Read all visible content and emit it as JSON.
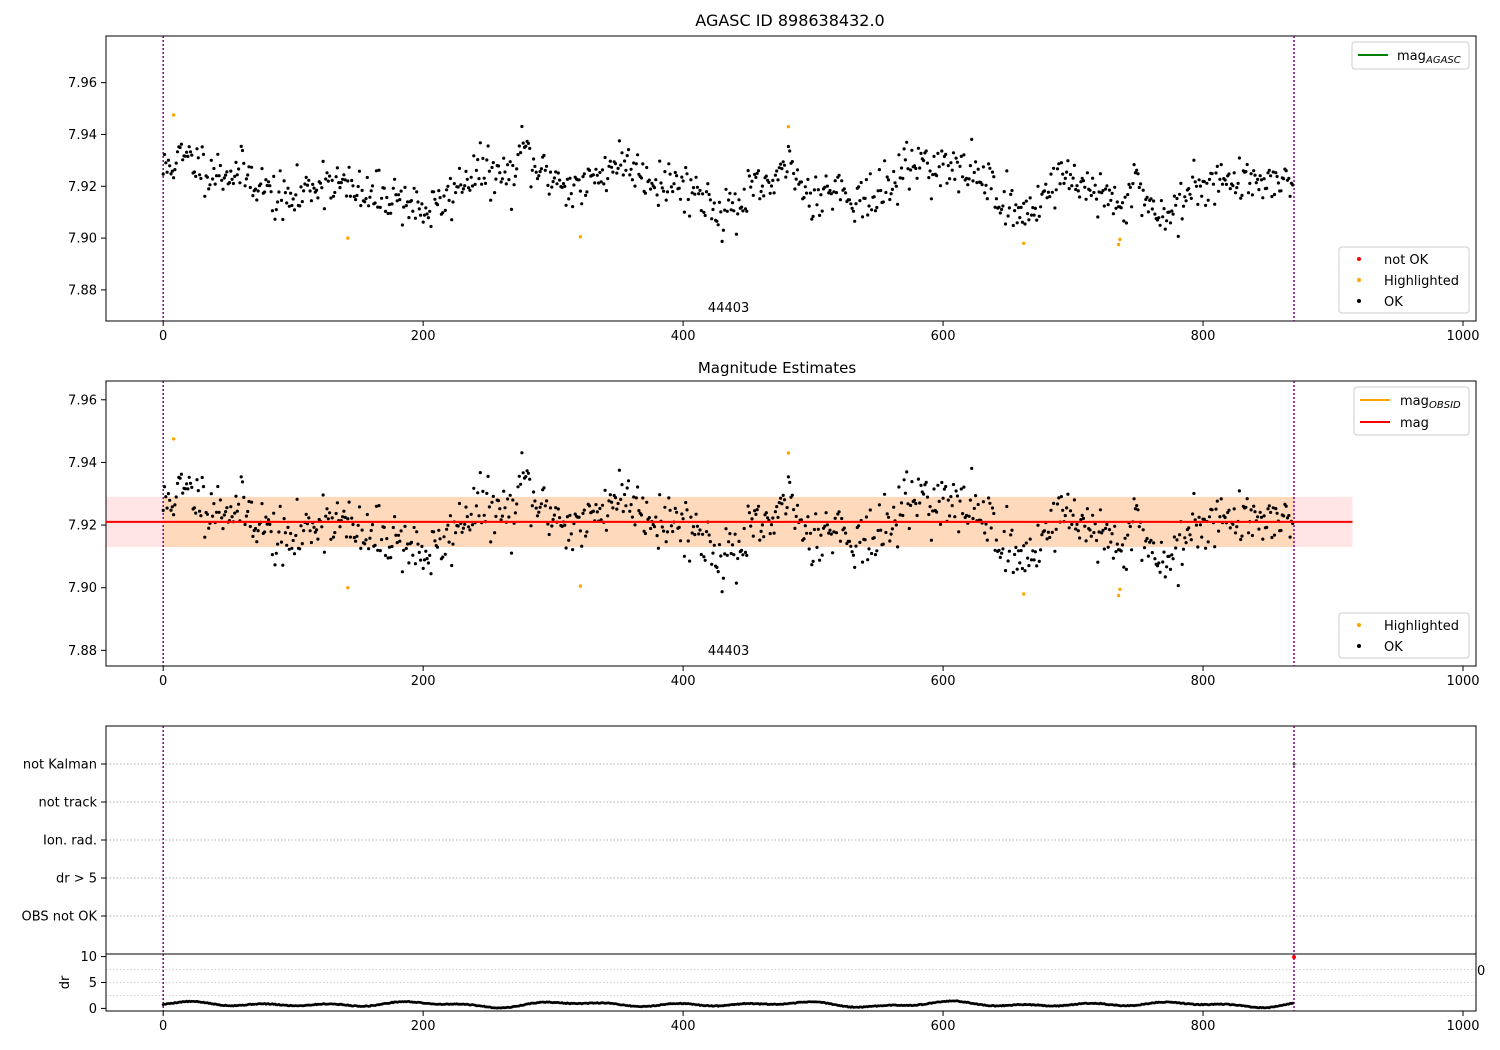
{
  "figure": {
    "title": "AGASC ID 898638432.0"
  },
  "chart_data": [
    {
      "id": "panel1",
      "type": "scatter",
      "title": "",
      "xlim": [
        -44,
        1010
      ],
      "ylim": [
        7.868,
        7.978
      ],
      "xticks": [
        0,
        200,
        400,
        600,
        800,
        1000
      ],
      "yticks": [
        7.88,
        7.9,
        7.92,
        7.94,
        7.96
      ],
      "ytick_labels": [
        "7.88",
        "7.90",
        "7.92",
        "7.94",
        "7.96"
      ],
      "vlines": [
        0,
        870
      ],
      "obsid_label": {
        "text": "44403",
        "x": 435,
        "y": 7.8715
      },
      "legend_lines": [
        {
          "label": "mag",
          "subscript": "AGASC",
          "color": "#008000"
        }
      ],
      "legend_markers": [
        {
          "label": "not OK",
          "color": "#ff0000"
        },
        {
          "label": "Highlighted",
          "color": "#ffa500"
        },
        {
          "label": "OK",
          "color": "#000000"
        }
      ],
      "highlighted": [
        [
          8,
          7.9475
        ],
        [
          142,
          7.9
        ],
        [
          321,
          7.9005
        ],
        [
          481,
          7.943
        ],
        [
          662,
          7.898
        ],
        [
          735,
          7.8975
        ],
        [
          736,
          7.8995
        ]
      ],
      "noise": {
        "n": 870,
        "seed": 11
      }
    },
    {
      "id": "panel2",
      "type": "scatter",
      "title": "Magnitude Estimates",
      "xlim": [
        -44,
        1010
      ],
      "ylim": [
        7.875,
        7.966
      ],
      "xticks": [
        0,
        200,
        400,
        600,
        800,
        1000
      ],
      "yticks": [
        7.88,
        7.9,
        7.92,
        7.94,
        7.96
      ],
      "ytick_labels": [
        "7.88",
        "7.90",
        "7.92",
        "7.94",
        "7.96"
      ],
      "vlines": [
        0,
        870
      ],
      "obsid_label": {
        "text": "44403",
        "x": 435,
        "y": 7.8785
      },
      "mag_mean": 7.921,
      "mag_band": [
        7.913,
        7.929
      ],
      "band_x": [
        -44,
        915
      ],
      "obsid_band_x": [
        0,
        870
      ],
      "legend_lines": [
        {
          "label": "mag",
          "subscript": "OBSID",
          "color": "#ffa500"
        },
        {
          "label": "mag",
          "subscript": "",
          "color": "#ff0000"
        }
      ],
      "legend_markers": [
        {
          "label": "Highlighted",
          "color": "#ffa500"
        },
        {
          "label": "OK",
          "color": "#000000"
        }
      ],
      "highlighted": [
        [
          8,
          7.9475
        ],
        [
          142,
          7.9
        ],
        [
          321,
          7.9005
        ],
        [
          481,
          7.943
        ],
        [
          662,
          7.898
        ],
        [
          735,
          7.8975
        ],
        [
          736,
          7.8995
        ]
      ],
      "noise": {
        "n": 870,
        "seed": 11
      }
    },
    {
      "id": "panel3",
      "type": "scatter",
      "title": "",
      "xlim": [
        -44,
        1010
      ],
      "categories": [
        "not Kalman",
        "not track",
        "Ion. rad.",
        "dr > 5",
        "OBS not OK"
      ],
      "vlines": [
        0,
        870
      ],
      "flag_points": [
        [
          870,
          "not Kalman"
        ]
      ]
    },
    {
      "id": "panel4",
      "type": "scatter",
      "title": "",
      "xlim": [
        -44,
        1010
      ],
      "ylim": [
        -0.5,
        10.5
      ],
      "ylabel": "dr",
      "yticks": [
        0,
        5,
        10
      ],
      "ytick_labels": [
        "0",
        "5",
        "10"
      ],
      "xticks": [
        0,
        200,
        400,
        600,
        800,
        1000
      ],
      "vlines": [
        0,
        870
      ],
      "partial_label": "0",
      "notok_point": [
        870,
        9.9
      ],
      "noise": {
        "n": 870,
        "seed": 5
      }
    }
  ]
}
